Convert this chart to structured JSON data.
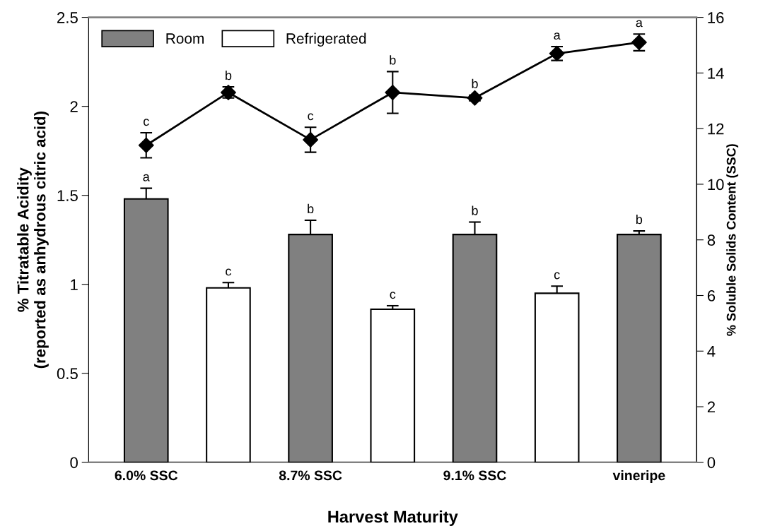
{
  "chart_data": {
    "type": "bar",
    "xlabel": "Harvest Maturity",
    "ylabel": "% Titratable Acidity\n(reported as anhydrous citric acid)",
    "y2label": "% Soluble Solids Content (SSC)",
    "categories": [
      "6.0% SSC",
      null,
      "8.7% SSC",
      null,
      "9.1% SSC",
      null,
      "vineripe"
    ],
    "series": [
      {
        "name": "Room",
        "color": "#808080",
        "values": [
          1.48,
          null,
          1.28,
          null,
          1.28,
          null,
          1.28
        ],
        "errors": [
          0.06,
          null,
          0.08,
          null,
          0.07,
          null,
          0.02
        ],
        "value_labels": [
          "a",
          null,
          "b",
          null,
          "b",
          null,
          "b"
        ]
      },
      {
        "name": "Refrigerated",
        "color": "#ffffff",
        "values": [
          null,
          0.98,
          null,
          0.86,
          null,
          0.95,
          null
        ],
        "errors": [
          null,
          0.03,
          null,
          0.02,
          null,
          0.04,
          null
        ],
        "value_labels": [
          null,
          "c",
          null,
          "c",
          null,
          "c",
          null
        ]
      },
      {
        "type": "line",
        "axis": "y2",
        "color": "#000000",
        "marker": "diamond",
        "values": [
          11.4,
          13.3,
          11.6,
          13.3,
          13.1,
          14.7,
          15.1
        ],
        "errors": [
          0.45,
          0.2,
          0.45,
          0.75,
          0.1,
          0.25,
          0.3
        ],
        "value_labels": [
          "c",
          "b",
          "c",
          "b",
          "b",
          "a",
          "a"
        ]
      }
    ],
    "ylim": [
      0,
      2.5
    ],
    "yticks": [
      0,
      0.5,
      1,
      1.5,
      2,
      2.5
    ],
    "y2lim": [
      0,
      16
    ],
    "y2ticks": [
      0,
      2,
      4,
      6,
      8,
      10,
      12,
      14,
      16
    ],
    "grid": false,
    "legend": "top left"
  }
}
